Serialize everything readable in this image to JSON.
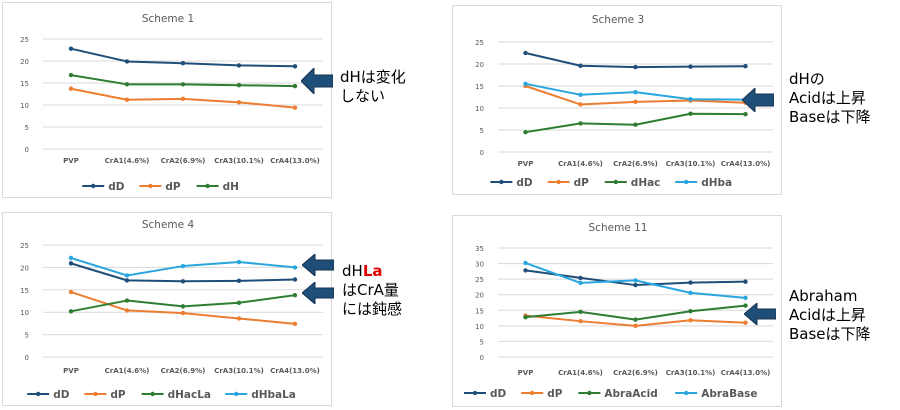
{
  "chart_data": [
    {
      "type": "line",
      "title": "Scheme 1",
      "categories": [
        "PVP",
        "CrA1(4.6%)",
        "CrA2(6.9%)",
        "CrA3(10.1%)",
        "CrA4(13.0%)"
      ],
      "yticks": [
        "0",
        "5",
        "10",
        "15",
        "20",
        "25"
      ],
      "ylim": [
        0,
        25
      ],
      "grid": true,
      "legend": "bottom",
      "series": [
        {
          "name": "dD",
          "color": "#1f4e79",
          "values": [
            22.8,
            19.9,
            19.5,
            19.0,
            18.8
          ]
        },
        {
          "name": "dP",
          "color": "#ed7d31",
          "values": [
            13.7,
            11.2,
            11.4,
            10.6,
            9.4
          ]
        },
        {
          "name": "dH",
          "color": "#2e7d32",
          "values": [
            16.8,
            14.7,
            14.7,
            14.5,
            14.3
          ]
        }
      ]
    },
    {
      "type": "line",
      "title": "Scheme 3",
      "categories": [
        "PVP",
        "CrA1(4.6%)",
        "CrA2(6.9%)",
        "CrA3(10.1%)",
        "CrA4(13.0%)"
      ],
      "yticks": [
        "0",
        "5",
        "10",
        "15",
        "20",
        "25"
      ],
      "ylim": [
        0,
        25
      ],
      "grid": true,
      "legend": "bottom",
      "series": [
        {
          "name": "dD",
          "color": "#1f4e79",
          "values": [
            22.5,
            19.6,
            19.3,
            19.4,
            19.5
          ]
        },
        {
          "name": "dP",
          "color": "#ed7d31",
          "values": [
            15.0,
            10.8,
            11.4,
            11.7,
            11.2
          ]
        },
        {
          "name": "dHac",
          "color": "#2e7d32",
          "values": [
            4.5,
            6.5,
            6.2,
            8.7,
            8.6
          ]
        },
        {
          "name": "dHba",
          "color": "#2aa6de",
          "values": [
            15.5,
            13.0,
            13.6,
            12.0,
            11.9
          ]
        }
      ]
    },
    {
      "type": "line",
      "title": "Scheme 4",
      "categories": [
        "PVP",
        "CrA1(4.6%)",
        "CrA2(6.9%)",
        "CrA3(10.1%)",
        "CrA4(13.0%)"
      ],
      "yticks": [
        "0",
        "5",
        "10",
        "15",
        "20",
        "25"
      ],
      "ylim": [
        0,
        25
      ],
      "grid": true,
      "legend": "bottom",
      "series": [
        {
          "name": "dD",
          "color": "#1f4e79",
          "values": [
            20.9,
            17.1,
            16.9,
            17.0,
            17.3
          ]
        },
        {
          "name": "dP",
          "color": "#ed7d31",
          "values": [
            14.5,
            10.4,
            9.8,
            8.6,
            7.4
          ]
        },
        {
          "name": "dHacLa",
          "color": "#2e7d32",
          "values": [
            10.2,
            12.6,
            11.3,
            12.1,
            13.8
          ]
        },
        {
          "name": "dHbaLa",
          "color": "#2aa6de",
          "values": [
            22.1,
            18.2,
            20.3,
            21.2,
            20.0
          ]
        }
      ]
    },
    {
      "type": "line",
      "title": "Scheme 11",
      "categories": [
        "PVP",
        "CrA1(4.6%)",
        "CrA2(6.9%)",
        "CrA3(10.1%)",
        "CrA4(13.0%)"
      ],
      "yticks": [
        "0",
        "5",
        "10",
        "15",
        "20",
        "25",
        "30",
        "35"
      ],
      "ylim": [
        0,
        35
      ],
      "grid": true,
      "legend": "bottom",
      "series": [
        {
          "name": "dD",
          "color": "#1f4e79",
          "values": [
            27.8,
            25.4,
            23.1,
            23.9,
            24.2
          ]
        },
        {
          "name": "dP",
          "color": "#ed7d31",
          "values": [
            13.3,
            11.5,
            10.0,
            11.8,
            11.0
          ]
        },
        {
          "name": "AbraAcid",
          "color": "#2e7d32",
          "values": [
            12.8,
            14.5,
            12.0,
            14.7,
            16.5
          ]
        },
        {
          "name": "AbraBase",
          "color": "#2aa6de",
          "values": [
            30.2,
            23.8,
            24.6,
            20.6,
            19.0
          ]
        }
      ]
    }
  ],
  "notes": {
    "scheme1": {
      "line1": "dHは変化",
      "line2": "しない"
    },
    "scheme3": {
      "line1": "dHの",
      "line2": "Acidは上昇",
      "line3": "Baseは下降"
    },
    "scheme4": {
      "line1_prefix": "dH",
      "line1_red": "La",
      "line2": "はCrA量",
      "line3": "には鈍感"
    },
    "scheme11": {
      "line1": "Abraham",
      "line2": "Acidは上昇",
      "line3": "Baseは下降"
    }
  },
  "colors": {
    "arrow_fill": "#1f4e79",
    "arrow_edge": "#16324f",
    "grid": "#d9d9d9",
    "axis_text": "#595959",
    "emphasis_red": "#e00000"
  }
}
